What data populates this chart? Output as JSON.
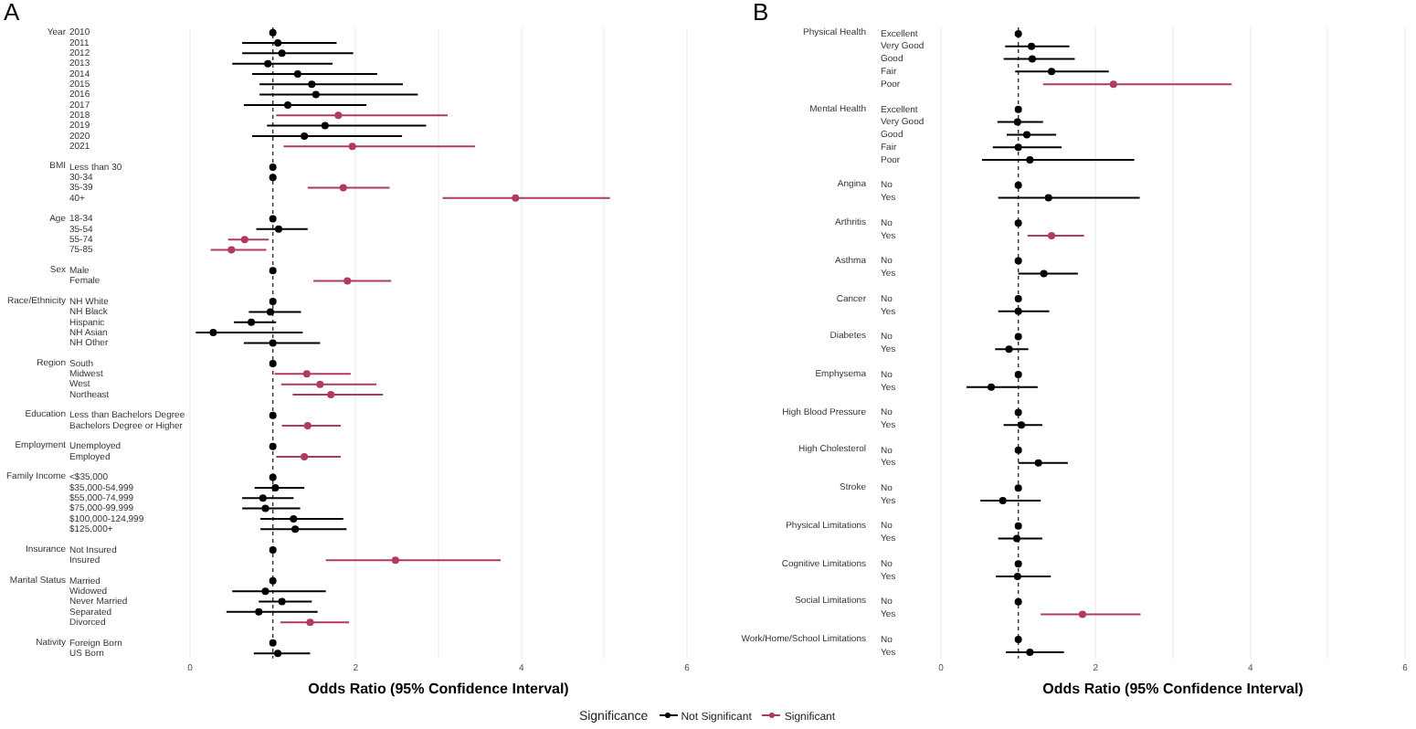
{
  "chart_data": [
    {
      "type": "scatter",
      "orientation": "horizontal",
      "title": "A",
      "xlabel": "Odds Ratio (95% Confidence Interval)",
      "annotations": [
        "Year",
        "BMI",
        "Age",
        "Sex",
        "Race/Ethnicity",
        "Region",
        "Education",
        "Employment",
        "Family Income",
        "Insurance",
        "Marital Status",
        "Nativity"
      ],
      "categories": [
        "2010",
        "2011",
        "2012",
        "2013",
        "2014",
        "2015",
        "2016",
        "2017",
        "2018",
        "2019",
        "2020",
        "2021",
        null,
        "Less than 30",
        "30-34",
        "35-39",
        "40+",
        null,
        "18-34",
        "35-54",
        "55-74",
        "75-85",
        null,
        "Male",
        "Female",
        null,
        "NH White",
        "NH Black",
        "Hispanic",
        "NH Asian",
        "NH Other",
        null,
        "South",
        "Midwest",
        "West",
        "Northeast",
        null,
        "Less than Bachelors Degree",
        "Bachelors Degree or Higher",
        null,
        "Unemployed",
        "Employed",
        null,
        "<$35,000",
        "$35,000-54,999",
        "$55,000-74,999",
        "$75,000-99,999",
        "$100,000-124,999",
        "$125,000+",
        null,
        "Not Insured",
        "Insured",
        null,
        "Married",
        "Widowed",
        "Never Married",
        "Separated",
        "Divorced",
        null,
        "Foreign Born",
        "US Born"
      ],
      "series": [
        {
          "color": "#000000",
          "values": [
            1,
            1.06,
            1.11,
            0.94,
            1.3,
            1.47,
            1.52,
            1.18,
            null,
            1.63,
            1.38,
            null,
            null,
            1,
            1.0,
            null,
            null,
            null,
            1,
            1.07,
            null,
            null,
            null,
            1,
            null,
            null,
            1,
            0.97,
            0.74,
            0.28,
            1.0,
            null,
            1,
            null,
            null,
            null,
            null,
            1,
            null,
            null,
            1,
            null,
            null,
            1,
            1.03,
            0.88,
            0.91,
            1.25,
            1.27,
            null,
            1,
            null,
            null,
            1,
            0.91,
            1.11,
            0.83,
            null,
            null,
            1,
            1.06
          ],
          "errors": [
            null,
            [
              0.63,
              1.77
            ],
            [
              0.63,
              1.97
            ],
            [
              0.51,
              1.72
            ],
            [
              0.75,
              2.26
            ],
            [
              0.84,
              2.57
            ],
            [
              0.84,
              2.75
            ],
            [
              0.65,
              2.13
            ],
            null,
            [
              0.93,
              2.85
            ],
            [
              0.75,
              2.56
            ],
            null,
            null,
            null,
            [
              0.97,
              1.04
            ],
            null,
            null,
            null,
            null,
            [
              0.8,
              1.42
            ],
            null,
            null,
            null,
            null,
            null,
            null,
            null,
            [
              0.71,
              1.34
            ],
            [
              0.53,
              1.04
            ],
            [
              0.07,
              1.36
            ],
            [
              0.65,
              1.57
            ],
            null,
            null,
            null,
            null,
            null,
            null,
            null,
            null,
            null,
            null,
            null,
            null,
            null,
            [
              0.78,
              1.38
            ],
            [
              0.63,
              1.25
            ],
            [
              0.63,
              1.33
            ],
            [
              0.85,
              1.85
            ],
            [
              0.85,
              1.89
            ],
            null,
            null,
            null,
            null,
            null,
            [
              0.51,
              1.64
            ],
            [
              0.83,
              1.47
            ],
            [
              0.44,
              1.54
            ],
            null,
            null,
            null,
            [
              0.77,
              1.45
            ]
          ]
        },
        {
          "color": "#b03a62",
          "values": [
            null,
            null,
            null,
            null,
            null,
            null,
            null,
            null,
            1.79,
            null,
            null,
            1.96,
            null,
            null,
            null,
            1.85,
            3.93,
            null,
            null,
            null,
            0.66,
            0.5,
            null,
            null,
            1.9,
            null,
            null,
            null,
            null,
            null,
            null,
            null,
            null,
            1.41,
            1.57,
            1.7,
            null,
            null,
            1.42,
            null,
            null,
            1.38,
            null,
            null,
            null,
            null,
            null,
            null,
            null,
            null,
            null,
            2.48,
            null,
            null,
            null,
            null,
            null,
            1.45,
            null,
            null,
            null
          ],
          "errors": [
            null,
            null,
            null,
            null,
            null,
            null,
            null,
            null,
            [
              1.04,
              3.11
            ],
            null,
            null,
            [
              1.13,
              3.44
            ],
            null,
            null,
            null,
            [
              1.42,
              2.41
            ],
            [
              3.05,
              5.07
            ],
            null,
            null,
            null,
            [
              0.46,
              0.95
            ],
            [
              0.25,
              0.92
            ],
            null,
            null,
            [
              1.49,
              2.43
            ],
            null,
            null,
            null,
            null,
            null,
            null,
            null,
            null,
            [
              1.02,
              1.94
            ],
            [
              1.1,
              2.25
            ],
            [
              1.24,
              2.33
            ],
            null,
            null,
            [
              1.11,
              1.82
            ],
            null,
            null,
            [
              1.04,
              1.82
            ],
            null,
            null,
            null,
            null,
            null,
            null,
            null,
            null,
            null,
            [
              1.64,
              3.75
            ],
            null,
            null,
            null,
            null,
            null,
            [
              1.09,
              1.92
            ],
            null,
            null,
            null
          ]
        }
      ],
      "xlim": [
        0,
        6
      ],
      "xticks": [
        0,
        {
          "value": 1,
          "label": null
        },
        2,
        {
          "value": 3,
          "label": null
        },
        4,
        {
          "value": 5,
          "label": null
        },
        6
      ],
      "ref_lines": [
        {
          "axis": "x",
          "value": 1,
          "line_style": "dashed"
        }
      ],
      "grid": "x",
      "marker": "circle"
    },
    {
      "type": "scatter",
      "orientation": "horizontal",
      "title": "B",
      "xlabel": "Odds Ratio (95% Confidence Interval)",
      "legend": "bottom",
      "legend_title": "Significance",
      "annotations": [
        "Physical Health",
        "Mental Health",
        "Angina",
        "Arthritis",
        "Asthma",
        "Cancer",
        "Diabetes",
        "Emphysema",
        "High Blood Pressure",
        "High Cholesterol",
        "Stroke",
        "Physical Limitations",
        "Cognitive Limitations",
        "Social Limitations",
        "Work/Home/School Limitations"
      ],
      "categories": [
        "Excellent",
        "Very Good",
        "Good",
        "Fair",
        "Poor",
        null,
        "Excellent",
        "Very Good",
        "Good",
        "Fair",
        "Poor",
        null,
        "No",
        "Yes",
        null,
        "No",
        "Yes",
        null,
        "No",
        "Yes",
        null,
        "No",
        "Yes",
        null,
        "No",
        "Yes",
        null,
        "No",
        "Yes",
        null,
        "No",
        "Yes",
        null,
        "No",
        "Yes",
        null,
        "No",
        "Yes",
        null,
        "No",
        "Yes",
        null,
        "No",
        "Yes",
        null,
        "No",
        "Yes",
        null,
        "No",
        "Yes"
      ],
      "series": [
        {
          "name": "Not Significant",
          "color": "#000000",
          "values": [
            1,
            1.17,
            1.18,
            1.43,
            null,
            null,
            1,
            0.99,
            1.11,
            1.0,
            1.15,
            null,
            1,
            1.39,
            null,
            1,
            null,
            null,
            1,
            1.33,
            null,
            1,
            1.0,
            null,
            1,
            0.88,
            null,
            1,
            0.65,
            null,
            1,
            1.04,
            null,
            1,
            1.26,
            null,
            1,
            0.8,
            null,
            1,
            0.98,
            null,
            1,
            0.99,
            null,
            1,
            null,
            null,
            1,
            1.15
          ],
          "errors": [
            null,
            [
              0.83,
              1.66
            ],
            [
              0.81,
              1.73
            ],
            [
              0.96,
              2.17
            ],
            null,
            null,
            null,
            [
              0.73,
              1.32
            ],
            [
              0.85,
              1.49
            ],
            [
              0.67,
              1.56
            ],
            [
              0.53,
              2.5
            ],
            null,
            null,
            [
              0.74,
              2.57
            ],
            null,
            null,
            null,
            null,
            null,
            [
              1.0,
              1.77
            ],
            null,
            null,
            [
              0.74,
              1.4
            ],
            null,
            null,
            [
              0.7,
              1.13
            ],
            null,
            null,
            [
              0.33,
              1.25
            ],
            null,
            null,
            [
              0.81,
              1.31
            ],
            null,
            null,
            [
              1.0,
              1.64
            ],
            null,
            null,
            [
              0.51,
              1.29
            ],
            null,
            null,
            [
              0.74,
              1.31
            ],
            null,
            null,
            [
              0.71,
              1.42
            ],
            null,
            null,
            null,
            null,
            null,
            [
              0.84,
              1.59
            ]
          ]
        },
        {
          "name": "Significant",
          "color": "#b03a62",
          "values": [
            null,
            null,
            null,
            null,
            2.23,
            null,
            null,
            null,
            null,
            null,
            null,
            null,
            null,
            null,
            null,
            null,
            1.43,
            null,
            null,
            null,
            null,
            null,
            null,
            null,
            null,
            null,
            null,
            null,
            null,
            null,
            null,
            null,
            null,
            null,
            null,
            null,
            null,
            null,
            null,
            null,
            null,
            null,
            null,
            null,
            null,
            null,
            1.83,
            null,
            null,
            null
          ],
          "errors": [
            null,
            null,
            null,
            null,
            [
              1.32,
              3.76
            ],
            null,
            null,
            null,
            null,
            null,
            null,
            null,
            null,
            null,
            null,
            null,
            [
              1.12,
              1.85
            ],
            null,
            null,
            null,
            null,
            null,
            null,
            null,
            null,
            null,
            null,
            null,
            null,
            null,
            null,
            null,
            null,
            null,
            null,
            null,
            null,
            null,
            null,
            null,
            null,
            null,
            null,
            null,
            null,
            null,
            [
              1.29,
              2.58
            ],
            null,
            null,
            null
          ]
        }
      ],
      "xlim": [
        0,
        6
      ],
      "xticks": [
        0,
        {
          "value": 1,
          "label": null
        },
        2,
        {
          "value": 3,
          "label": null
        },
        4,
        {
          "value": 5,
          "label": null
        },
        6
      ],
      "ref_lines": [
        {
          "axis": "x",
          "value": 1,
          "line_style": "dashed"
        }
      ],
      "grid": "x",
      "marker": "circle"
    }
  ]
}
